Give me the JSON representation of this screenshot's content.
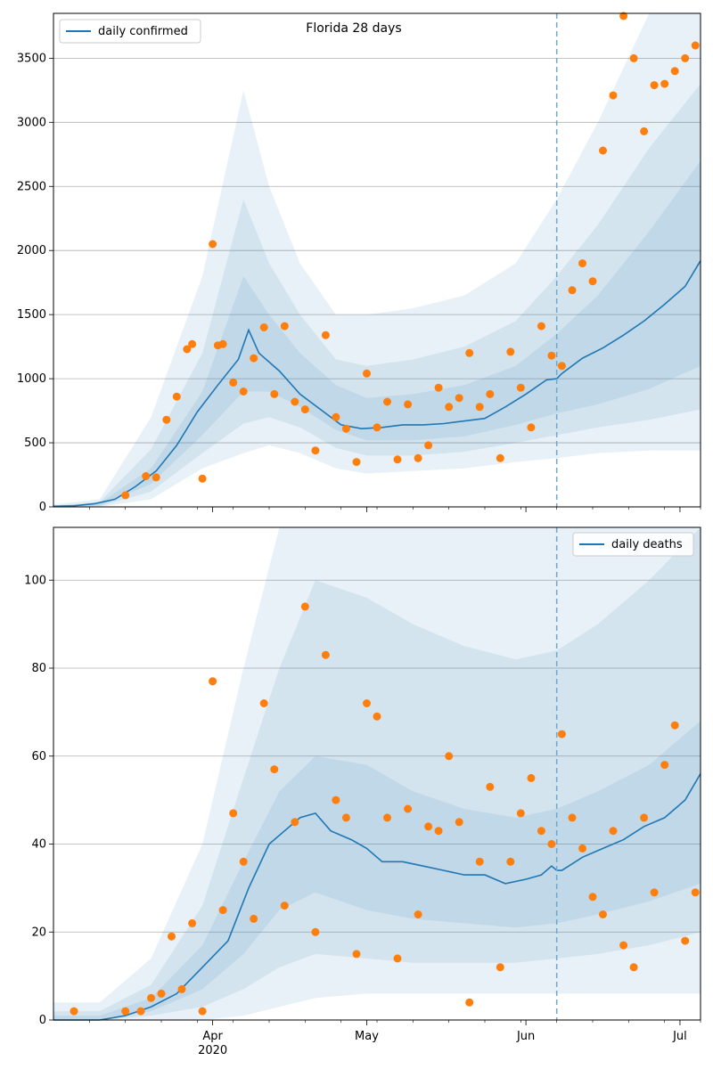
{
  "figure_title": "Florida 28 days",
  "colors": {
    "line": "#1f77b4",
    "points": "#ff7f0e",
    "band": "#1f77b4",
    "grid": "#b0b0b0"
  },
  "chart_data": [
    {
      "type": "line",
      "title": "Florida 28 days",
      "legend": {
        "label": "daily confirmed",
        "placement": "top-left"
      },
      "xlabel": "",
      "ylabel": "",
      "x_start": "2020-03-01",
      "x_end": "2020-07-05",
      "ylim": [
        0,
        3850
      ],
      "yticks": [
        0,
        500,
        1000,
        1500,
        2000,
        2500,
        3000,
        3500
      ],
      "ytick_labels": [
        "0",
        "500",
        "1000",
        "1500",
        "2000",
        "2500",
        "3000",
        "3500"
      ],
      "forecast_start": "2020-06-07",
      "grid": "horizontal",
      "series": [
        {
          "name": "daily confirmed",
          "role": "model median",
          "x": [
            "2020-03-01",
            "2020-03-05",
            "2020-03-09",
            "2020-03-13",
            "2020-03-17",
            "2020-03-21",
            "2020-03-25",
            "2020-03-29",
            "2020-04-02",
            "2020-04-06",
            "2020-04-08",
            "2020-04-10",
            "2020-04-14",
            "2020-04-18",
            "2020-04-22",
            "2020-04-26",
            "2020-04-30",
            "2020-05-04",
            "2020-05-08",
            "2020-05-12",
            "2020-05-16",
            "2020-05-20",
            "2020-05-24",
            "2020-05-28",
            "2020-06-01",
            "2020-06-05",
            "2020-06-07",
            "2020-06-08",
            "2020-06-12",
            "2020-06-16",
            "2020-06-20",
            "2020-06-24",
            "2020-06-28",
            "2020-07-02",
            "2020-07-05"
          ],
          "y": [
            5,
            8,
            25,
            60,
            160,
            280,
            480,
            740,
            950,
            1150,
            1380,
            1200,
            1060,
            880,
            760,
            640,
            610,
            620,
            640,
            640,
            650,
            670,
            690,
            780,
            880,
            990,
            1000,
            1040,
            1160,
            1240,
            1340,
            1450,
            1580,
            1720,
            1920
          ]
        },
        {
          "name": "observed",
          "role": "daily observed cases",
          "x": [
            "2020-03-15",
            "2020-03-19",
            "2020-03-21",
            "2020-03-23",
            "2020-03-25",
            "2020-03-27",
            "2020-03-28",
            "2020-03-30",
            "2020-04-01",
            "2020-04-02",
            "2020-04-03",
            "2020-04-05",
            "2020-04-07",
            "2020-04-09",
            "2020-04-11",
            "2020-04-13",
            "2020-04-15",
            "2020-04-17",
            "2020-04-19",
            "2020-04-21",
            "2020-04-23",
            "2020-04-25",
            "2020-04-27",
            "2020-04-29",
            "2020-05-01",
            "2020-05-03",
            "2020-05-05",
            "2020-05-07",
            "2020-05-09",
            "2020-05-11",
            "2020-05-13",
            "2020-05-15",
            "2020-05-17",
            "2020-05-19",
            "2020-05-21",
            "2020-05-23",
            "2020-05-25",
            "2020-05-27",
            "2020-05-29",
            "2020-05-31",
            "2020-06-02",
            "2020-06-04",
            "2020-06-06",
            "2020-06-08",
            "2020-06-10",
            "2020-06-12",
            "2020-06-14",
            "2020-06-16",
            "2020-06-18",
            "2020-06-20",
            "2020-06-22",
            "2020-06-24",
            "2020-06-26",
            "2020-06-28",
            "2020-06-30",
            "2020-07-02",
            "2020-07-04"
          ],
          "y": [
            90,
            240,
            230,
            680,
            860,
            1230,
            1270,
            220,
            2050,
            1260,
            1270,
            970,
            900,
            1160,
            1400,
            880,
            1410,
            820,
            760,
            440,
            1340,
            700,
            610,
            350,
            1040,
            620,
            820,
            370,
            800,
            380,
            480,
            930,
            780,
            850,
            1200,
            780,
            880,
            380,
            1210,
            930,
            620,
            1410,
            1180,
            1100,
            1690,
            1900,
            1760,
            2780,
            3210,
            3830,
            3500,
            2930,
            3290,
            3300,
            3400,
            3500,
            3600
          ]
        }
      ],
      "bands": [
        {
          "name": "outer interval",
          "x": [
            "2020-03-01",
            "2020-03-10",
            "2020-03-20",
            "2020-03-30",
            "2020-04-07",
            "2020-04-12",
            "2020-04-18",
            "2020-04-25",
            "2020-05-01",
            "2020-05-10",
            "2020-05-20",
            "2020-05-30",
            "2020-06-07",
            "2020-06-15",
            "2020-06-25",
            "2020-07-05"
          ],
          "low": [
            0,
            0,
            60,
            300,
            420,
            480,
            420,
            300,
            260,
            280,
            300,
            350,
            380,
            420,
            440,
            440
          ],
          "high": [
            20,
            60,
            700,
            1800,
            3250,
            2500,
            1900,
            1500,
            1500,
            1550,
            1650,
            1900,
            2400,
            3000,
            3850,
            3850
          ]
        },
        {
          "name": "middle interval",
          "x": [
            "2020-03-01",
            "2020-03-10",
            "2020-03-20",
            "2020-03-30",
            "2020-04-07",
            "2020-04-12",
            "2020-04-18",
            "2020-04-25",
            "2020-05-01",
            "2020-05-10",
            "2020-05-20",
            "2020-05-30",
            "2020-06-07",
            "2020-06-15",
            "2020-06-25",
            "2020-07-05"
          ],
          "low": [
            0,
            5,
            120,
            420,
            650,
            700,
            620,
            460,
            400,
            400,
            430,
            500,
            560,
            620,
            680,
            760
          ],
          "high": [
            10,
            40,
            450,
            1200,
            2400,
            1900,
            1500,
            1150,
            1100,
            1150,
            1250,
            1450,
            1800,
            2200,
            2800,
            3300
          ]
        },
        {
          "name": "inner interval",
          "x": [
            "2020-03-01",
            "2020-03-10",
            "2020-03-20",
            "2020-03-30",
            "2020-04-07",
            "2020-04-12",
            "2020-04-18",
            "2020-04-25",
            "2020-05-01",
            "2020-05-10",
            "2020-05-20",
            "2020-05-30",
            "2020-06-07",
            "2020-06-15",
            "2020-06-25",
            "2020-07-05"
          ],
          "low": [
            0,
            10,
            180,
            560,
            900,
            900,
            780,
            600,
            520,
            520,
            550,
            640,
            730,
            800,
            920,
            1100
          ],
          "high": [
            8,
            30,
            300,
            900,
            1800,
            1500,
            1200,
            950,
            850,
            880,
            950,
            1100,
            1350,
            1650,
            2150,
            2700
          ]
        }
      ]
    },
    {
      "type": "line",
      "title": "",
      "legend": {
        "label": "daily deaths",
        "placement": "top-right"
      },
      "xlabel": "",
      "ylabel": "",
      "x_start": "2020-03-01",
      "x_end": "2020-07-05",
      "ylim": [
        0,
        112
      ],
      "yticks": [
        0,
        20,
        40,
        60,
        80,
        100
      ],
      "ytick_labels": [
        "0",
        "20",
        "40",
        "60",
        "80",
        "100"
      ],
      "xtick_labels": [
        {
          "date": "2020-04-01",
          "label": "Apr",
          "sublabel": "2020"
        },
        {
          "date": "2020-05-01",
          "label": "May",
          "sublabel": ""
        },
        {
          "date": "2020-06-01",
          "label": "Jun",
          "sublabel": ""
        },
        {
          "date": "2020-07-01",
          "label": "Jul",
          "sublabel": ""
        }
      ],
      "forecast_start": "2020-06-07",
      "grid": "horizontal",
      "series": [
        {
          "name": "daily deaths",
          "role": "model median",
          "x": [
            "2020-03-01",
            "2020-03-10",
            "2020-03-15",
            "2020-03-20",
            "2020-03-25",
            "2020-03-30",
            "2020-04-04",
            "2020-04-08",
            "2020-04-12",
            "2020-04-15",
            "2020-04-18",
            "2020-04-21",
            "2020-04-24",
            "2020-04-28",
            "2020-05-01",
            "2020-05-04",
            "2020-05-08",
            "2020-05-12",
            "2020-05-16",
            "2020-05-20",
            "2020-05-24",
            "2020-05-28",
            "2020-06-01",
            "2020-06-04",
            "2020-06-06",
            "2020-06-07",
            "2020-06-08",
            "2020-06-12",
            "2020-06-16",
            "2020-06-20",
            "2020-06-24",
            "2020-06-28",
            "2020-07-02",
            "2020-07-05"
          ],
          "y": [
            0,
            0,
            1,
            3,
            6,
            12,
            18,
            30,
            40,
            43,
            46,
            47,
            43,
            41,
            39,
            36,
            36,
            35,
            34,
            33,
            33,
            31,
            32,
            33,
            35,
            34,
            34,
            37,
            39,
            41,
            44,
            46,
            50,
            56
          ]
        },
        {
          "name": "observed",
          "role": "daily observed deaths",
          "x": [
            "2020-03-05",
            "2020-03-15",
            "2020-03-18",
            "2020-03-20",
            "2020-03-22",
            "2020-03-24",
            "2020-03-26",
            "2020-03-28",
            "2020-03-30",
            "2020-04-01",
            "2020-04-03",
            "2020-04-05",
            "2020-04-07",
            "2020-04-09",
            "2020-04-11",
            "2020-04-13",
            "2020-04-15",
            "2020-04-17",
            "2020-04-19",
            "2020-04-21",
            "2020-04-23",
            "2020-04-25",
            "2020-04-27",
            "2020-04-29",
            "2020-05-01",
            "2020-05-03",
            "2020-05-05",
            "2020-05-07",
            "2020-05-09",
            "2020-05-11",
            "2020-05-13",
            "2020-05-15",
            "2020-05-17",
            "2020-05-19",
            "2020-05-21",
            "2020-05-23",
            "2020-05-25",
            "2020-05-27",
            "2020-05-29",
            "2020-05-31",
            "2020-06-02",
            "2020-06-04",
            "2020-06-06",
            "2020-06-08",
            "2020-06-10",
            "2020-06-12",
            "2020-06-14",
            "2020-06-16",
            "2020-06-18",
            "2020-06-20",
            "2020-06-22",
            "2020-06-24",
            "2020-06-26",
            "2020-06-28",
            "2020-06-30",
            "2020-07-02",
            "2020-07-04"
          ],
          "y": [
            2,
            2,
            2,
            5,
            6,
            19,
            7,
            22,
            2,
            77,
            25,
            47,
            36,
            23,
            72,
            57,
            26,
            45,
            94,
            20,
            83,
            50,
            46,
            15,
            72,
            69,
            46,
            14,
            48,
            24,
            44,
            43,
            60,
            45,
            4,
            36,
            53,
            12,
            36,
            47,
            55,
            43,
            40,
            65,
            46,
            39,
            28,
            24,
            43,
            17,
            12,
            46,
            29,
            58,
            67,
            18,
            29
          ]
        }
      ],
      "bands": [
        {
          "name": "outer interval",
          "x": [
            "2020-03-01",
            "2020-03-10",
            "2020-03-20",
            "2020-03-30",
            "2020-04-07",
            "2020-04-14",
            "2020-04-21",
            "2020-05-01",
            "2020-05-10",
            "2020-05-20",
            "2020-05-30",
            "2020-06-07",
            "2020-06-15",
            "2020-06-25",
            "2020-07-05"
          ],
          "low": [
            0,
            0,
            0,
            0,
            1,
            3,
            5,
            6,
            6,
            6,
            6,
            6,
            6,
            6,
            6
          ],
          "high": [
            4,
            4,
            14,
            40,
            80,
            112,
            112,
            112,
            112,
            112,
            112,
            112,
            112,
            112,
            112
          ]
        },
        {
          "name": "middle interval",
          "x": [
            "2020-03-01",
            "2020-03-10",
            "2020-03-20",
            "2020-03-30",
            "2020-04-07",
            "2020-04-14",
            "2020-04-21",
            "2020-05-01",
            "2020-05-10",
            "2020-05-20",
            "2020-05-30",
            "2020-06-07",
            "2020-06-15",
            "2020-06-25",
            "2020-07-05"
          ],
          "low": [
            0,
            0,
            1,
            3,
            7,
            12,
            15,
            14,
            13,
            13,
            13,
            14,
            15,
            17,
            20
          ],
          "high": [
            2,
            2,
            8,
            26,
            55,
            80,
            100,
            96,
            90,
            85,
            82,
            84,
            90,
            100,
            112
          ]
        },
        {
          "name": "inner interval",
          "x": [
            "2020-03-01",
            "2020-03-10",
            "2020-03-20",
            "2020-03-30",
            "2020-04-07",
            "2020-04-14",
            "2020-04-21",
            "2020-05-01",
            "2020-05-10",
            "2020-05-20",
            "2020-05-30",
            "2020-06-07",
            "2020-06-15",
            "2020-06-25",
            "2020-07-05"
          ],
          "low": [
            0,
            0,
            2,
            7,
            15,
            25,
            29,
            25,
            23,
            22,
            21,
            22,
            24,
            27,
            31
          ],
          "high": [
            1,
            1,
            5,
            17,
            36,
            52,
            60,
            58,
            52,
            48,
            46,
            48,
            52,
            58,
            68
          ]
        }
      ]
    }
  ]
}
